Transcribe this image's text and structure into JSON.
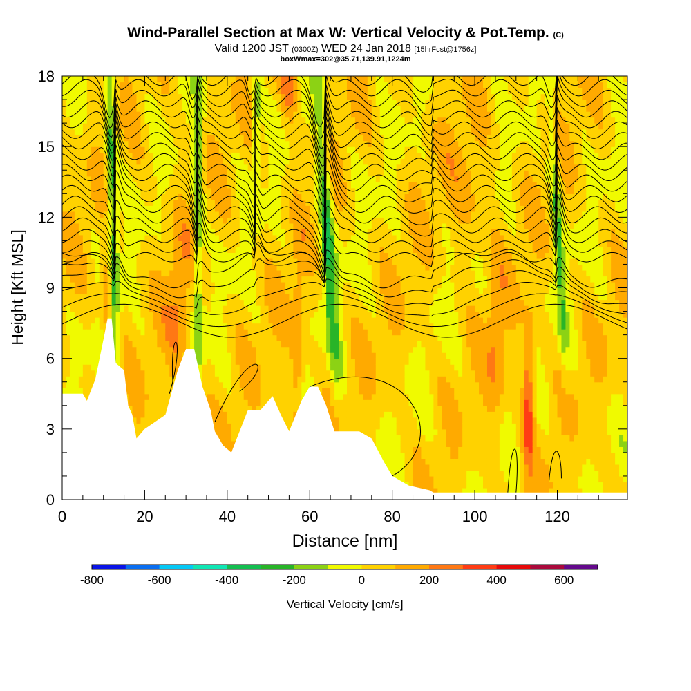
{
  "title": {
    "main": "Wind-Parallel Section at Max W: Vertical Velocity & Pot.Temp.",
    "main_suffix": "(C)",
    "valid_pre": "Valid 1200 JST",
    "valid_z": "(0300Z)",
    "valid_date": "WED 24 Jan 2018",
    "valid_fcst": "[15hrFcst@1756z]",
    "box": "boxWmax=302@35.71,139.91,1224m"
  },
  "chart_data": {
    "type": "heatmap",
    "xlabel": "Distance [nm]",
    "ylabel": "Height [Kft MSL]",
    "xlim": [
      0,
      137
    ],
    "ylim": [
      0,
      18
    ],
    "x_ticks": [
      "0",
      "20",
      "40",
      "60",
      "80",
      "100",
      "120"
    ],
    "y_ticks": [
      "0",
      "3",
      "6",
      "9",
      "12",
      "15",
      "18"
    ],
    "colorbar": {
      "label": "Vertical Velocity [cm/s]",
      "tick_labels": [
        "-800",
        "-600",
        "-400",
        "-200",
        "0",
        "200",
        "400",
        "600"
      ],
      "levels": [
        -800,
        -700,
        -600,
        -500,
        -400,
        -300,
        -200,
        -100,
        0,
        100,
        200,
        300,
        400,
        500,
        600,
        700
      ],
      "colors": [
        "#0a14e6",
        "#0a6ef0",
        "#05c8f5",
        "#10e6b4",
        "#14be50",
        "#28b428",
        "#8cd214",
        "#f0fa00",
        "#ffd200",
        "#ffaa00",
        "#ff7814",
        "#ff3c14",
        "#e60a0a",
        "#aa0a3c",
        "#640a8c"
      ]
    },
    "updraft_bands_x": [
      13,
      33,
      47,
      62,
      66,
      120
    ],
    "terrain": [
      [
        0,
        4.5
      ],
      [
        5,
        4.5
      ],
      [
        6,
        4.2
      ],
      [
        8,
        5.1
      ],
      [
        10,
        6.8
      ],
      [
        11,
        7.7
      ],
      [
        12,
        7.7
      ],
      [
        13,
        5.8
      ],
      [
        15,
        5.5
      ],
      [
        16,
        4.0
      ],
      [
        17,
        3.6
      ],
      [
        18,
        2.6
      ],
      [
        20,
        3.0
      ],
      [
        25,
        3.6
      ],
      [
        28,
        5.5
      ],
      [
        30,
        6.4
      ],
      [
        32,
        6.4
      ],
      [
        34,
        4.8
      ],
      [
        36,
        3.8
      ],
      [
        37,
        2.9
      ],
      [
        39,
        2.3
      ],
      [
        41,
        2.0
      ],
      [
        43,
        2.9
      ],
      [
        45,
        3.8
      ],
      [
        48,
        3.8
      ],
      [
        51,
        4.4
      ],
      [
        53,
        3.6
      ],
      [
        55,
        2.9
      ],
      [
        58,
        4.2
      ],
      [
        60,
        4.8
      ],
      [
        62,
        4.8
      ],
      [
        64,
        4.0
      ],
      [
        66,
        2.9
      ],
      [
        72,
        2.9
      ],
      [
        75,
        2.6
      ],
      [
        78,
        1.6
      ],
      [
        80,
        1.0
      ],
      [
        84,
        0.6
      ],
      [
        89,
        0.4
      ],
      [
        90,
        0.3
      ],
      [
        137,
        0.3
      ]
    ]
  }
}
